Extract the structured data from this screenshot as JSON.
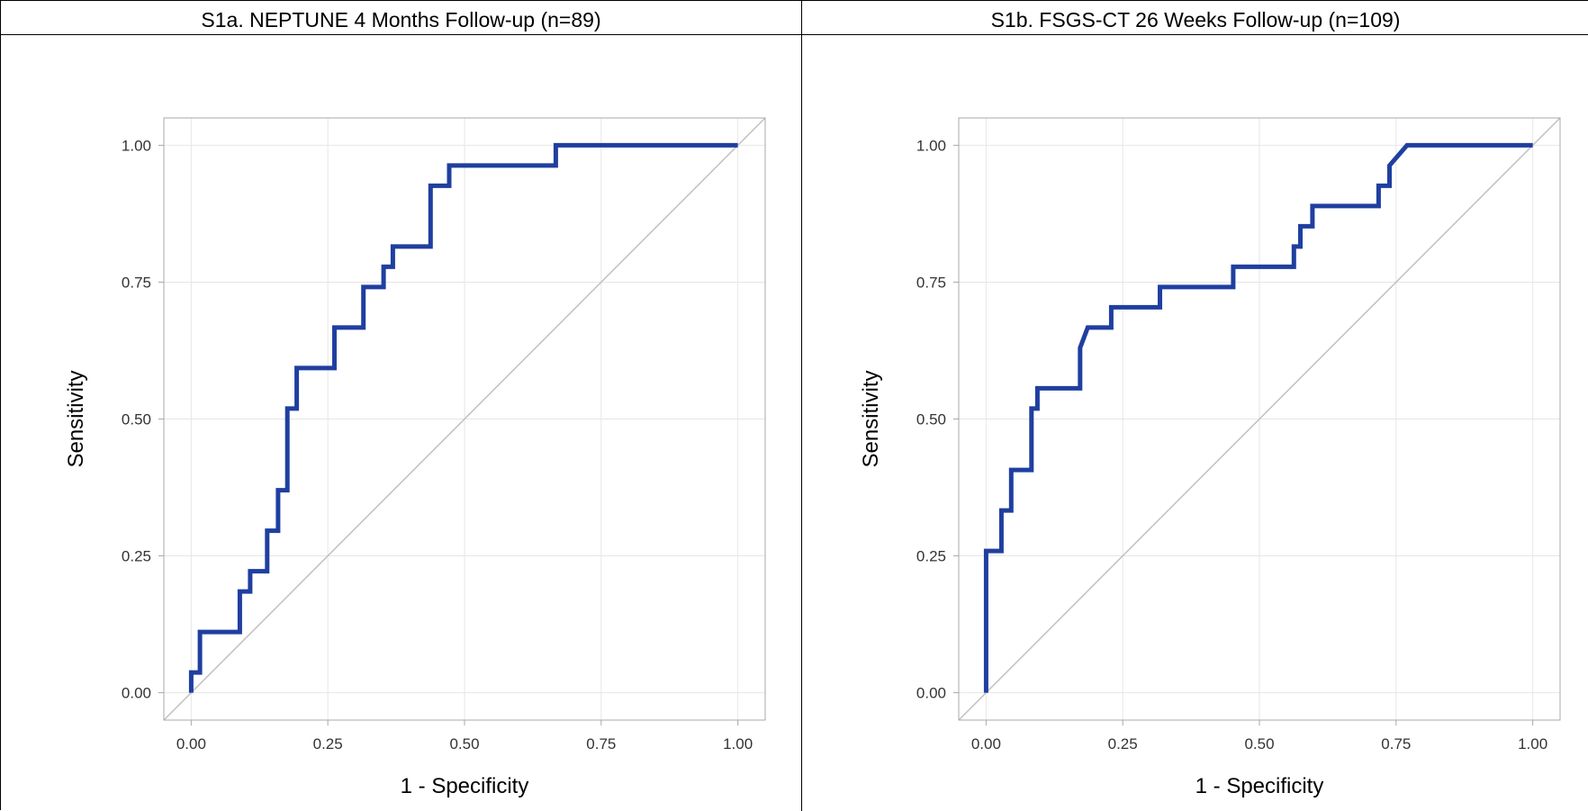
{
  "colors": {
    "roc_line": "#1f3fa0",
    "diagonal": "#c0c0c0",
    "grid": "#e6e6e6",
    "frame": "#a8a8a8"
  },
  "chart_data": [
    {
      "type": "line",
      "title": "S1a. NEPTUNE 4 Months Follow-up (n=89)",
      "xlabel": "1 - Specificity",
      "ylabel": "Sensitivity",
      "xlim": [
        -0.05,
        1.05
      ],
      "ylim": [
        -0.05,
        1.05
      ],
      "xticks": [
        "0.00",
        "0.25",
        "0.50",
        "0.75",
        "1.00"
      ],
      "yticks": [
        "0.00",
        "0.25",
        "0.50",
        "0.75",
        "1.00"
      ],
      "grid": true,
      "reference_line": true,
      "series": [
        {
          "x": [
            0,
            0,
            0.016,
            0.016,
            0.089,
            0.089,
            0.108,
            0.108,
            0.139,
            0.139,
            0.159,
            0.159,
            0.176,
            0.176,
            0.193,
            0.193,
            0.262,
            0.262,
            0.315,
            0.315,
            0.352,
            0.352,
            0.369,
            0.369,
            0.438,
            0.438,
            0.472,
            0.472,
            0.667,
            0.667,
            1.0
          ],
          "y": [
            0,
            0.037,
            0.037,
            0.111,
            0.111,
            0.185,
            0.185,
            0.222,
            0.222,
            0.296,
            0.296,
            0.37,
            0.37,
            0.519,
            0.519,
            0.593,
            0.593,
            0.667,
            0.667,
            0.741,
            0.741,
            0.778,
            0.778,
            0.815,
            0.815,
            0.926,
            0.926,
            0.963,
            0.963,
            1.0,
            1.0
          ]
        }
      ]
    },
    {
      "type": "line",
      "title": "S1b. FSGS-CT 26 Weeks Follow-up (n=109)",
      "xlabel": "1 - Specificity",
      "ylabel": "Sensitivity",
      "xlim": [
        -0.05,
        1.05
      ],
      "ylim": [
        -0.05,
        1.05
      ],
      "xticks": [
        "0.00",
        "0.25",
        "0.50",
        "0.75",
        "1.00"
      ],
      "yticks": [
        "0.00",
        "0.25",
        "0.50",
        "0.75",
        "1.00"
      ],
      "grid": true,
      "reference_line": true,
      "series": [
        {
          "x": [
            0,
            0,
            0.028,
            0.028,
            0.046,
            0.046,
            0.083,
            0.083,
            0.094,
            0.094,
            0.172,
            0.172,
            0.186,
            0.186,
            0.229,
            0.229,
            0.318,
            0.318,
            0.452,
            0.452,
            0.563,
            0.563,
            0.575,
            0.575,
            0.597,
            0.597,
            0.718,
            0.718,
            0.738,
            0.738,
            0.77,
            0.77,
            1.0
          ],
          "y": [
            0,
            0.259,
            0.259,
            0.333,
            0.333,
            0.407,
            0.407,
            0.519,
            0.519,
            0.556,
            0.556,
            0.63,
            0.667,
            0.667,
            0.667,
            0.704,
            0.704,
            0.741,
            0.741,
            0.778,
            0.778,
            0.815,
            0.815,
            0.852,
            0.852,
            0.889,
            0.889,
            0.926,
            0.926,
            0.963,
            1.0,
            1.0,
            1.0
          ]
        }
      ]
    }
  ]
}
